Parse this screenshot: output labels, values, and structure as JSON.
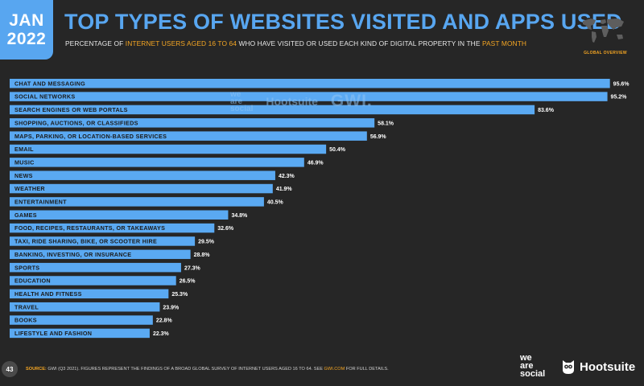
{
  "header": {
    "month": "JAN",
    "year": "2022",
    "title": "TOP TYPES OF WEBSITES VISITED AND APPS USED",
    "subtitle_parts": [
      "PERCENTAGE OF ",
      "INTERNET USERS AGED 16 TO 64",
      " WHO HAVE VISITED OR USED EACH KIND OF DIGITAL PROPERTY IN THE ",
      "PAST MONTH"
    ],
    "badge": "GLOBAL OVERVIEW"
  },
  "watermark": {
    "was": [
      "we",
      "are",
      "social"
    ],
    "hootsuite": "Hootsuite",
    "gwi": "GWI."
  },
  "chart_data": {
    "type": "bar",
    "orientation": "horizontal",
    "title": "TOP TYPES OF WEBSITES VISITED AND APPS USED",
    "xlabel": "",
    "ylabel": "",
    "xlim": [
      0,
      100
    ],
    "unit": "%",
    "categories": [
      "CHAT AND MESSAGING",
      "SOCIAL NETWORKS",
      "SEARCH ENGINES OR WEB PORTALS",
      "SHOPPING, AUCTIONS, OR CLASSIFIEDS",
      "MAPS, PARKING, OR LOCATION-BASED SERVICES",
      "EMAIL",
      "MUSIC",
      "NEWS",
      "WEATHER",
      "ENTERTAINMENT",
      "GAMES",
      "FOOD, RECIPES, RESTAURANTS, OR TAKEAWAYS",
      "TAXI, RIDE SHARING, BIKE, OR SCOOTER HIRE",
      "BANKING, INVESTING, OR INSURANCE",
      "SPORTS",
      "EDUCATION",
      "HEALTH AND FITNESS",
      "TRAVEL",
      "BOOKS",
      "LIFESTYLE AND FASHION"
    ],
    "values": [
      95.6,
      95.2,
      83.6,
      58.1,
      56.9,
      50.4,
      46.9,
      42.3,
      41.9,
      40.5,
      34.8,
      32.6,
      29.5,
      28.8,
      27.3,
      26.5,
      25.3,
      23.9,
      22.8,
      22.3
    ],
    "value_labels": [
      "95.6%",
      "95.2%",
      "83.6%",
      "58.1%",
      "56.9%",
      "50.4%",
      "46.9%",
      "42.3%",
      "41.9%",
      "40.5%",
      "34.8%",
      "32.6%",
      "29.5%",
      "28.8%",
      "27.3%",
      "26.5%",
      "25.3%",
      "23.9%",
      "22.8%",
      "22.3%"
    ],
    "bar_color": "#5aa9f2"
  },
  "footer": {
    "page_number": "43",
    "source_label": "SOURCE:",
    "source_text": " GWI (Q3 2021). FIGURES REPRESENT THE FINDINGS OF A BROAD GLOBAL SURVEY OF INTERNET USERS AGED 16 TO 64. SEE ",
    "source_link": "GWI.COM",
    "source_tail": " FOR FULL DETAILS.",
    "logo_was": [
      "we",
      "are",
      "social"
    ],
    "logo_hootsuite": "Hootsuite"
  },
  "colors": {
    "accent": "#58a6f0",
    "highlight": "#f5a623",
    "background": "#262626"
  }
}
